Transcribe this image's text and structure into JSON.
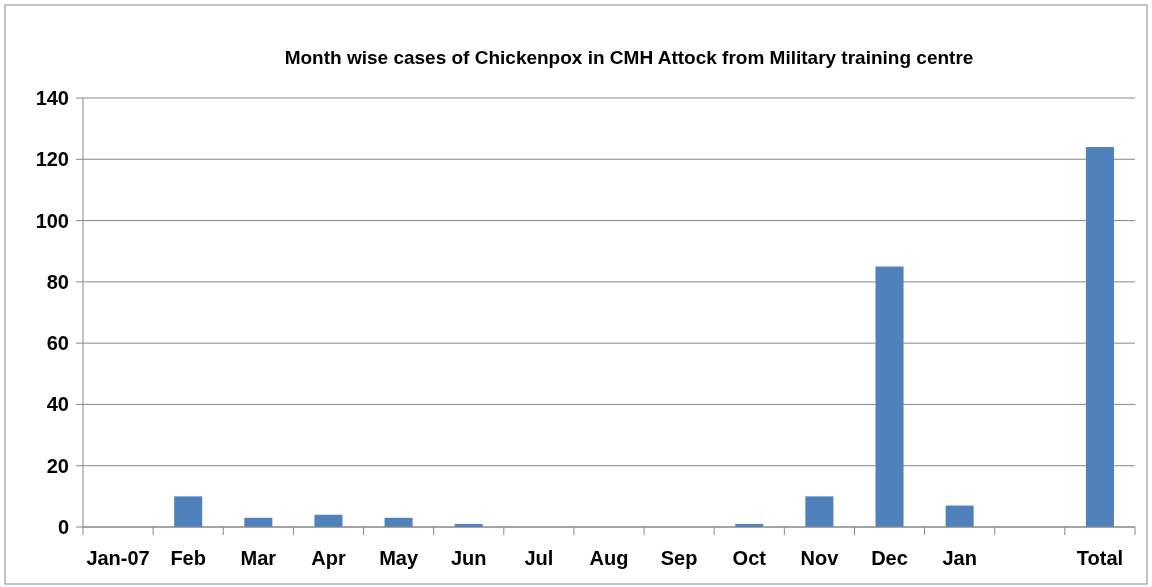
{
  "chart_data": {
    "type": "bar",
    "title": "Month wise cases of Chickenpox in CMH Attock from Military  training centre",
    "categories": [
      "Jan-07",
      "Feb",
      "Mar",
      "Apr",
      "May",
      "Jun",
      "Jul",
      "Aug",
      "Sep",
      "Oct",
      "Nov",
      "Dec",
      "Jan",
      null,
      "Total"
    ],
    "values": [
      0,
      10,
      3,
      4,
      3,
      1,
      0,
      0,
      0,
      1,
      10,
      85,
      7,
      null,
      124
    ],
    "color": "#4f81bd",
    "ylim": [
      0,
      140
    ],
    "yticks": [
      0,
      20,
      40,
      60,
      80,
      100,
      120,
      140
    ],
    "grid": "y"
  }
}
